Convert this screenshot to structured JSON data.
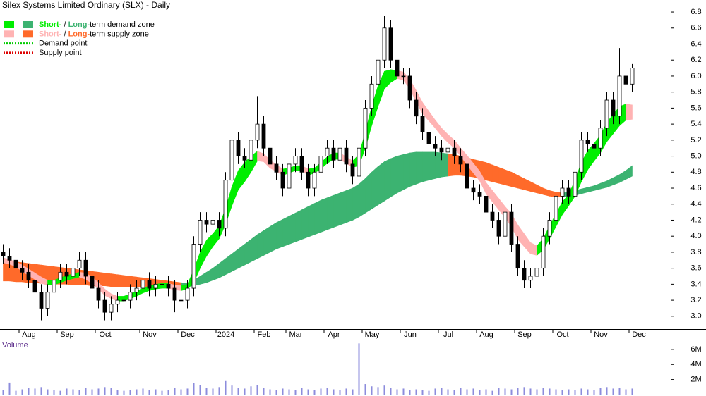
{
  "chart_data": {
    "type": "candlestick",
    "title": "Silex Systems Limited Ordinary (SLX) - Daily",
    "categories": [
      null,
      null,
      null,
      null,
      null,
      null,
      null,
      null,
      null,
      null,
      null,
      null,
      null,
      null,
      null,
      null,
      null,
      null,
      null,
      null,
      null,
      null,
      null,
      null,
      null,
      null,
      null,
      null,
      null,
      null,
      null,
      null,
      null,
      null,
      null,
      null,
      null,
      null,
      null,
      null,
      null,
      null,
      null,
      null,
      null,
      null,
      null,
      null,
      null,
      null,
      null,
      null,
      null,
      null,
      null,
      null,
      null,
      null,
      null,
      null,
      null,
      null,
      null,
      null,
      null,
      null,
      null,
      null,
      null,
      null,
      null,
      null,
      null,
      null,
      null,
      null,
      null,
      null,
      null,
      null,
      null,
      null,
      null,
      null,
      null,
      null,
      null,
      null,
      null,
      null,
      null,
      null,
      null,
      null,
      null,
      null,
      null,
      null,
      null,
      null
    ],
    "xticks": [
      {
        "value": 3,
        "label": "Aug"
      },
      {
        "value": 9,
        "label": "Sep"
      },
      {
        "value": 15,
        "label": "Oct"
      },
      {
        "value": 22,
        "label": "Nov"
      },
      {
        "value": 28,
        "label": "Dec"
      },
      {
        "value": 34,
        "label": "2024"
      },
      {
        "value": 40,
        "label": "Feb"
      },
      {
        "value": 45,
        "label": "Mar"
      },
      {
        "value": 51,
        "label": "Apr"
      },
      {
        "value": 57,
        "label": "May"
      },
      {
        "value": 63,
        "label": "Jun"
      },
      {
        "value": 69,
        "label": "Jul"
      },
      {
        "value": 75,
        "label": "Aug"
      },
      {
        "value": 81,
        "label": "Sep"
      },
      {
        "value": 87,
        "label": "Oct"
      },
      {
        "value": 93,
        "label": "Nov"
      },
      {
        "value": 99,
        "label": "Dec"
      }
    ],
    "ylim": [
      2.84,
      6.95
    ],
    "yticks": [
      {
        "value": 3,
        "label": "3.0"
      },
      3.2,
      3.4,
      3.6,
      3.8,
      {
        "value": 4,
        "label": "4.0"
      },
      4.2,
      4.4,
      4.6,
      4.8,
      {
        "value": 5,
        "label": "5.0"
      },
      5.2,
      5.4,
      5.6,
      5.8,
      {
        "value": 6,
        "label": "6.0"
      },
      6.2,
      6.4,
      6.6,
      6.8
    ],
    "open": [
      3.8,
      3.75,
      3.7,
      3.6,
      3.55,
      3.45,
      3.3,
      3.1,
      3.3,
      3.45,
      3.55,
      3.5,
      3.6,
      3.7,
      3.5,
      3.35,
      3.2,
      3.05,
      3.15,
      3.2,
      3.2,
      3.3,
      3.35,
      3.45,
      3.35,
      3.4,
      3.4,
      3.35,
      3.2,
      3.2,
      3.35,
      3.9,
      4.2,
      4.15,
      4.2,
      4.1,
      4.7,
      5.2,
      5.0,
      4.95,
      5.2,
      5.4,
      5.1,
      4.9,
      4.8,
      4.6,
      4.9,
      5.0,
      4.8,
      4.6,
      4.8,
      5.0,
      5.1,
      4.95,
      5.1,
      4.9,
      4.75,
      5.1,
      5.6,
      5.9,
      6.2,
      6.6,
      6.2,
      6.0,
      6.0,
      5.7,
      5.5,
      5.3,
      5.15,
      5.1,
      5.05,
      5.1,
      5.0,
      4.9,
      4.6,
      4.55,
      4.5,
      4.3,
      4.2,
      4.0,
      4.3,
      3.9,
      3.6,
      3.45,
      3.5,
      3.6,
      4.0,
      4.2,
      4.5,
      4.6,
      4.5,
      4.8,
      5.2,
      5.15,
      5.1,
      5.35,
      5.7,
      5.5,
      6.0,
      5.9
    ],
    "high": [
      3.9,
      3.85,
      3.8,
      3.7,
      3.65,
      3.55,
      3.4,
      3.4,
      3.55,
      3.65,
      3.65,
      3.7,
      3.8,
      3.8,
      3.6,
      3.45,
      3.3,
      3.25,
      3.3,
      3.3,
      3.4,
      3.45,
      3.55,
      3.55,
      3.5,
      3.5,
      3.5,
      3.45,
      3.3,
      3.45,
      4.0,
      4.3,
      4.3,
      4.3,
      4.3,
      4.8,
      5.3,
      5.3,
      5.1,
      5.3,
      5.75,
      5.5,
      5.2,
      5.0,
      4.9,
      5.0,
      5.1,
      5.1,
      4.9,
      4.9,
      5.1,
      5.2,
      5.2,
      5.2,
      5.2,
      5.0,
      5.2,
      5.7,
      6.0,
      6.3,
      6.75,
      6.7,
      6.3,
      6.1,
      6.1,
      5.8,
      5.6,
      5.4,
      5.25,
      5.2,
      5.2,
      5.2,
      5.1,
      5.0,
      4.7,
      4.65,
      4.6,
      4.4,
      4.3,
      4.4,
      4.4,
      4.0,
      3.7,
      3.6,
      3.7,
      4.1,
      4.3,
      4.6,
      4.7,
      4.7,
      4.9,
      5.3,
      5.3,
      5.25,
      5.45,
      5.8,
      5.8,
      6.35,
      6.1,
      6.15
    ],
    "low": [
      3.65,
      3.6,
      3.5,
      3.45,
      3.35,
      3.2,
      2.95,
      3.0,
      3.2,
      3.35,
      3.4,
      3.4,
      3.5,
      3.4,
      3.25,
      3.1,
      2.95,
      2.95,
      3.05,
      3.1,
      3.1,
      3.2,
      3.25,
      3.25,
      3.25,
      3.3,
      3.25,
      3.05,
      3.1,
      3.1,
      3.25,
      3.8,
      4.05,
      4.05,
      4.0,
      4.0,
      4.6,
      4.9,
      4.85,
      4.85,
      5.1,
      5.0,
      4.8,
      4.7,
      4.5,
      4.5,
      4.8,
      4.7,
      4.5,
      4.5,
      4.7,
      4.9,
      4.85,
      4.85,
      4.8,
      4.65,
      4.65,
      5.0,
      5.5,
      5.8,
      6.1,
      6.1,
      5.9,
      5.9,
      5.6,
      5.4,
      5.2,
      5.05,
      5.0,
      4.95,
      4.95,
      4.9,
      4.8,
      4.5,
      4.45,
      4.4,
      4.2,
      4.1,
      3.9,
      3.9,
      3.8,
      3.5,
      3.35,
      3.35,
      3.4,
      3.5,
      3.9,
      4.1,
      4.4,
      4.4,
      4.4,
      4.7,
      5.05,
      5.0,
      5.0,
      5.25,
      5.4,
      5.4,
      5.8,
      5.8
    ],
    "close": [
      3.75,
      3.7,
      3.6,
      3.55,
      3.45,
      3.3,
      3.1,
      3.3,
      3.45,
      3.55,
      3.5,
      3.6,
      3.7,
      3.5,
      3.35,
      3.2,
      3.05,
      3.15,
      3.2,
      3.2,
      3.3,
      3.35,
      3.45,
      3.35,
      3.4,
      3.4,
      3.35,
      3.2,
      3.2,
      3.35,
      3.9,
      4.2,
      4.15,
      4.2,
      4.1,
      4.7,
      5.2,
      5.0,
      4.95,
      5.2,
      5.4,
      5.1,
      4.9,
      4.8,
      4.6,
      4.9,
      5.0,
      4.8,
      4.6,
      4.8,
      5.0,
      5.1,
      4.95,
      5.1,
      4.9,
      4.75,
      5.1,
      5.6,
      5.9,
      6.2,
      6.6,
      6.2,
      6.0,
      6.0,
      5.7,
      5.5,
      5.3,
      5.15,
      5.1,
      5.05,
      5.1,
      5.0,
      4.9,
      4.6,
      4.55,
      4.5,
      4.3,
      4.2,
      4.0,
      4.3,
      3.9,
      3.6,
      3.45,
      3.5,
      3.6,
      4.0,
      4.2,
      4.5,
      4.6,
      4.5,
      4.8,
      5.2,
      5.15,
      5.1,
      5.35,
      5.7,
      5.5,
      6.0,
      5.9,
      6.1
    ],
    "short_term_zone": {
      "upper": [
        3.73,
        3.71,
        3.68,
        3.64,
        3.59,
        3.54,
        3.49,
        3.45,
        3.45,
        3.48,
        3.51,
        3.53,
        3.55,
        3.54,
        3.49,
        3.42,
        3.34,
        3.28,
        3.25,
        3.25,
        3.28,
        3.31,
        3.35,
        3.38,
        3.4,
        3.41,
        3.41,
        3.39,
        3.38,
        3.4,
        3.58,
        3.8,
        3.95,
        4.03,
        4.13,
        4.35,
        4.62,
        4.82,
        4.92,
        5.0,
        5.06,
        5.03,
        4.95,
        4.89,
        4.84,
        4.85,
        4.88,
        4.88,
        4.84,
        4.85,
        4.92,
        4.99,
        5.04,
        5.04,
        4.99,
        4.94,
        5.02,
        5.3,
        5.62,
        5.88,
        6.06,
        6.08,
        6.07,
        6.05,
        5.96,
        5.82,
        5.67,
        5.56,
        5.45,
        5.35,
        5.27,
        5.2,
        5.1,
        5.01,
        4.91,
        4.81,
        4.67,
        4.57,
        4.47,
        4.37,
        4.28,
        4.14,
        4.03,
        3.92,
        3.88,
        3.97,
        4.13,
        4.28,
        4.43,
        4.52,
        4.7,
        4.92,
        5.07,
        5.16,
        5.26,
        5.42,
        5.52,
        5.62,
        5.65,
        5.64
      ],
      "lower": [
        3.67,
        3.65,
        3.62,
        3.56,
        3.51,
        3.46,
        3.41,
        3.39,
        3.39,
        3.42,
        3.45,
        3.47,
        3.49,
        3.46,
        3.41,
        3.34,
        3.26,
        3.22,
        3.19,
        3.19,
        3.22,
        3.25,
        3.29,
        3.32,
        3.34,
        3.35,
        3.35,
        3.33,
        3.32,
        3.34,
        3.42,
        3.6,
        3.75,
        3.87,
        3.97,
        4.15,
        4.38,
        4.58,
        4.68,
        4.8,
        4.94,
        4.93,
        4.85,
        4.81,
        4.76,
        4.79,
        4.82,
        4.82,
        4.76,
        4.79,
        4.84,
        4.91,
        4.96,
        4.96,
        4.91,
        4.86,
        4.88,
        5.1,
        5.38,
        5.62,
        5.84,
        5.92,
        5.97,
        5.95,
        5.84,
        5.68,
        5.53,
        5.44,
        5.35,
        5.25,
        5.17,
        5.1,
        5.0,
        4.89,
        4.79,
        4.69,
        4.53,
        4.43,
        4.33,
        4.23,
        4.12,
        3.96,
        3.87,
        3.78,
        3.76,
        3.83,
        3.97,
        4.12,
        4.27,
        4.38,
        4.5,
        4.68,
        4.83,
        4.94,
        5.04,
        5.18,
        5.28,
        5.38,
        5.45,
        5.46
      ]
    },
    "long_term_zone": {
      "upper": [
        3.7,
        3.69,
        3.68,
        3.67,
        3.66,
        3.65,
        3.64,
        3.63,
        3.62,
        3.61,
        3.6,
        3.59,
        3.58,
        3.57,
        3.56,
        3.55,
        3.54,
        3.53,
        3.52,
        3.51,
        3.5,
        3.49,
        3.48,
        3.47,
        3.46,
        3.45,
        3.44,
        3.43,
        3.42,
        3.41,
        3.45,
        3.5,
        3.55,
        3.6,
        3.66,
        3.72,
        3.78,
        3.84,
        3.9,
        3.96,
        4.02,
        4.07,
        4.12,
        4.17,
        4.21,
        4.25,
        4.29,
        4.33,
        4.37,
        4.41,
        4.45,
        4.48,
        4.51,
        4.54,
        4.57,
        4.6,
        4.65,
        4.72,
        4.8,
        4.87,
        4.93,
        4.97,
        5.0,
        5.02,
        5.04,
        5.05,
        5.05,
        5.05,
        5.05,
        5.04,
        5.03,
        5.02,
        5.0,
        4.98,
        4.96,
        4.94,
        4.92,
        4.89,
        4.86,
        4.83,
        4.8,
        4.76,
        4.72,
        4.68,
        4.64,
        4.6,
        4.57,
        4.55,
        4.54,
        4.55,
        4.57,
        4.59,
        4.61,
        4.63,
        4.66,
        4.69,
        4.73,
        4.77,
        4.82,
        4.88
      ],
      "lower": [
        3.44,
        3.44,
        3.43,
        3.43,
        3.42,
        3.42,
        3.41,
        3.41,
        3.4,
        3.4,
        3.4,
        3.39,
        3.39,
        3.39,
        3.38,
        3.38,
        3.38,
        3.37,
        3.37,
        3.37,
        3.37,
        3.37,
        3.37,
        3.36,
        3.36,
        3.36,
        3.36,
        3.36,
        3.36,
        3.37,
        3.38,
        3.4,
        3.42,
        3.45,
        3.48,
        3.52,
        3.56,
        3.6,
        3.64,
        3.68,
        3.72,
        3.76,
        3.8,
        3.84,
        3.87,
        3.9,
        3.93,
        3.96,
        3.99,
        4.02,
        4.05,
        4.08,
        4.11,
        4.14,
        4.17,
        4.2,
        4.24,
        4.29,
        4.34,
        4.39,
        4.44,
        4.49,
        4.54,
        4.58,
        4.62,
        4.65,
        4.68,
        4.7,
        4.72,
        4.74,
        4.75,
        4.76,
        4.76,
        4.75,
        4.74,
        4.72,
        4.7,
        4.68,
        4.66,
        4.64,
        4.62,
        4.6,
        4.58,
        4.56,
        4.54,
        4.52,
        4.5,
        4.49,
        4.49,
        4.5,
        4.51,
        4.53,
        4.55,
        4.57,
        4.59,
        4.61,
        4.64,
        4.67,
        4.71,
        4.75
      ]
    },
    "legend": [
      {
        "short": "Short-",
        "sep": " / ",
        "long": "Long-",
        "rest": "term demand zone",
        "short_color": "#00ee00",
        "long_color": "#3cb371"
      },
      {
        "short": "Short-",
        "sep": " / ",
        "long": "Long-",
        "rest": "term supply zone",
        "short_color": "#ffb3b3",
        "long_color": "#ff6a2a"
      },
      {
        "name": "Demand point",
        "color": "#00cc00"
      },
      {
        "name": "Supply point",
        "color": "#dd0000"
      }
    ],
    "volume": {
      "label": "Volume",
      "color": "#8c8cdc",
      "ylim": [
        0,
        7300000
      ],
      "yticks": [
        {
          "value": 2000000,
          "label": "2M"
        },
        {
          "value": 4000000,
          "label": "4M"
        },
        {
          "value": 6000000,
          "label": "6M"
        }
      ],
      "values": [
        600000,
        1600000,
        500000,
        700000,
        900000,
        800000,
        1000000,
        700000,
        600000,
        500000,
        800000,
        700000,
        600000,
        900000,
        700000,
        800000,
        1000000,
        900000,
        600000,
        500000,
        600000,
        700000,
        800000,
        600000,
        700000,
        500000,
        600000,
        900000,
        700000,
        800000,
        1500000,
        1300000,
        900000,
        800000,
        1000000,
        1800000,
        1200000,
        900000,
        800000,
        1100000,
        1300000,
        900000,
        700000,
        600000,
        800000,
        700000,
        600000,
        900000,
        700000,
        600000,
        800000,
        900000,
        700000,
        600000,
        800000,
        700000,
        6800000,
        1400000,
        1100000,
        1000000,
        1200000,
        900000,
        700000,
        800000,
        600000,
        700000,
        600000,
        500000,
        800000,
        900000,
        700000,
        600000,
        900000,
        700000,
        800000,
        600000,
        700000,
        500000,
        900000,
        800000,
        700000,
        900000,
        1000000,
        800000,
        700000,
        900000,
        800000,
        700000,
        600000,
        700000,
        600000,
        800000,
        700000,
        600000,
        900000,
        1000000,
        800000,
        900000,
        700000,
        800000
      ]
    }
  }
}
